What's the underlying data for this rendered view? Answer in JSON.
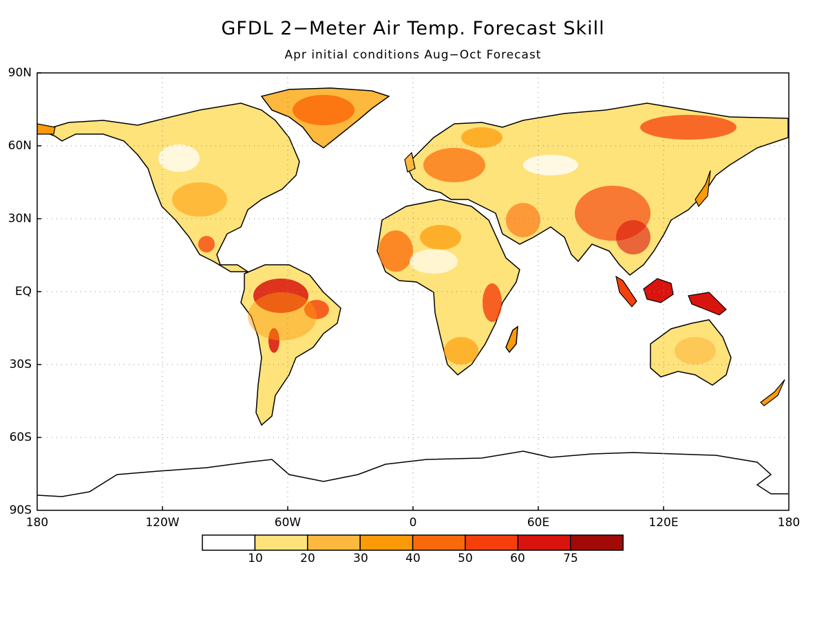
{
  "title": "GFDL 2−Meter Air Temp. Forecast Skill",
  "subtitle": "Apr initial conditions   Aug−Oct Forecast",
  "lat_labels": [
    "90N",
    "60N",
    "30N",
    "EQ",
    "30S",
    "60S",
    "90S"
  ],
  "lon_labels": [
    "180",
    "120W",
    "60W",
    "0",
    "60E",
    "120E",
    "180"
  ],
  "colorbar": {
    "boundaries": [
      "10",
      "20",
      "30",
      "40",
      "50",
      "60",
      "75"
    ],
    "colors": [
      "#ffffff",
      "#fee27a",
      "#fdb83e",
      "#fd9a08",
      "#fb6a0a",
      "#f5400e",
      "#d9140e",
      "#a10a06"
    ]
  }
}
